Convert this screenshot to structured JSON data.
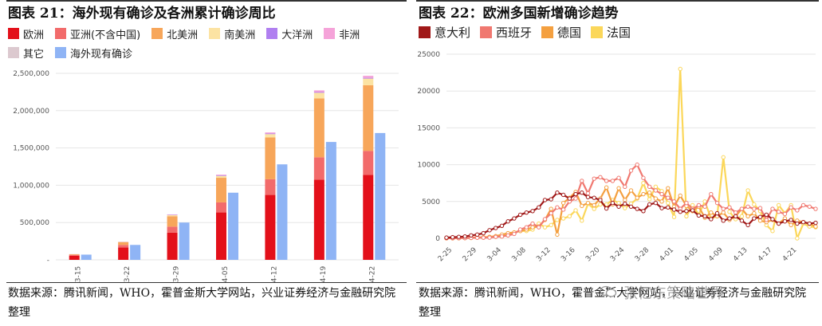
{
  "left": {
    "title": "图表 21：海外现有确诊及各洲累计确诊周比",
    "source": "数据来源：腾讯新闻，WHO，霍普金斯大学网站，兴业证券经济与金融研究院整理",
    "chart_data": {
      "type": "bar",
      "stacked": true,
      "categories": [
        "3-15",
        "3-22",
        "3-29",
        "4-05",
        "4-12",
        "4-19",
        "4-22"
      ],
      "series": [
        {
          "name": "欧洲",
          "color": "#e3101a",
          "values": [
            55000,
            165000,
            365000,
            635000,
            870000,
            1075000,
            1140000
          ]
        },
        {
          "name": "亚洲(不含中国)",
          "color": "#f26b6b",
          "values": [
            12000,
            35000,
            80000,
            135000,
            210000,
            300000,
            320000
          ]
        },
        {
          "name": "北美洲",
          "color": "#f7a65a",
          "values": [
            8000,
            35000,
            140000,
            330000,
            560000,
            790000,
            880000
          ]
        },
        {
          "name": "南美洲",
          "color": "#fce3a3",
          "values": [
            1000,
            5000,
            15000,
            25000,
            45000,
            75000,
            90000
          ]
        },
        {
          "name": "大洋洲",
          "color": "#b07ff0",
          "values": [
            500,
            2000,
            4000,
            7000,
            8000,
            9000,
            10000
          ]
        },
        {
          "name": "非洲",
          "color": "#f5a3d9",
          "values": [
            500,
            2000,
            5000,
            10000,
            15000,
            22000,
            27000
          ]
        },
        {
          "name": "其它",
          "color": "#dcc9cf",
          "values": [
            500,
            700,
            700,
            700,
            700,
            700,
            700
          ]
        }
      ],
      "comparison_series": {
        "name": "海外现有确诊",
        "color": "#8fb4f5",
        "values": [
          70000,
          200000,
          500000,
          900000,
          1280000,
          1580000,
          1700000
        ]
      },
      "ylim": [
        0,
        2500000
      ],
      "yticks": [
        "-",
        "500,000",
        "1,000,000",
        "1,500,000",
        "2,000,000",
        "2,500,000"
      ],
      "ytick_values": [
        0,
        500000,
        1000000,
        1500000,
        2000000,
        2500000
      ],
      "grid": true
    }
  },
  "right": {
    "title": "图表 22：欧洲多国新增确诊趋势",
    "source": "数据来源：腾讯新闻，WHO，霍普金斯大学网站，兴业证券经济与金融研究院整理",
    "watermark": "张忆东策略世界",
    "chart_data": {
      "type": "line",
      "x_ticks": [
        "2-25",
        "2-29",
        "3-04",
        "3-08",
        "3-12",
        "3-16",
        "3-20",
        "3-24",
        "3-28",
        "4-01",
        "4-05",
        "4-09",
        "4-13",
        "4-17",
        "4-21"
      ],
      "ylim": [
        0,
        25000
      ],
      "yticks": [
        "0",
        "5000",
        "10000",
        "15000",
        "20000",
        "25000"
      ],
      "ytick_values": [
        0,
        5000,
        10000,
        15000,
        20000,
        25000
      ],
      "grid": true,
      "series": [
        {
          "name": "意大利",
          "color": "#a01818",
          "values": [
            100,
            150,
            200,
            250,
            400,
            500,
            700,
            1100,
            1400,
            1700,
            2300,
            2700,
            3200,
            3500,
            3700,
            4200,
            5200,
            5300,
            6200,
            5900,
            5400,
            6000,
            6200,
            5600,
            5500,
            5200,
            4050,
            4800,
            4300,
            4700,
            4300,
            4000,
            3700,
            4600,
            4800,
            4100,
            4200,
            3900,
            3600,
            3700,
            3800,
            3100,
            3000,
            2600,
            3400,
            2400,
            2700,
            3000,
            2400,
            1800,
            2700,
            2900,
            3200,
            2600,
            2000,
            2300,
            2500,
            2000,
            2200,
            2000,
            2100
          ]
        },
        {
          "name": "西班牙",
          "color": "#f07870",
          "values": [
            20,
            20,
            30,
            30,
            60,
            80,
            90,
            100,
            200,
            250,
            400,
            600,
            1200,
            1500,
            2000,
            1500,
            2600,
            3400,
            4200,
            3900,
            5000,
            5400,
            7800,
            6100,
            8100,
            8300,
            7800,
            7800,
            8200,
            7000,
            9200,
            10000,
            8200,
            7000,
            6500,
            6000,
            5500,
            5000,
            4000,
            4800,
            4000,
            4500,
            4300,
            6000,
            4800,
            4000,
            4200,
            3500,
            4000,
            4300,
            4000,
            4100,
            2500,
            4000,
            3600,
            3300,
            4200,
            3800,
            4500,
            4300,
            4000
          ]
        },
        {
          "name": "德国",
          "color": "#f4a040",
          "values": [
            10,
            10,
            20,
            50,
            100,
            150,
            100,
            200,
            300,
            500,
            700,
            800,
            1000,
            1200,
            1500,
            1600,
            2500,
            4000,
            500,
            4800,
            5500,
            6300,
            4400,
            4800,
            4500,
            5400,
            6900,
            4600,
            6800,
            5200,
            6500,
            5500,
            6000,
            6200,
            5400,
            5000,
            6800,
            4300,
            5800,
            4400,
            3700,
            4300,
            2800,
            3500,
            3000,
            3500,
            2500,
            3000,
            4000,
            3000,
            3400,
            2400,
            2200,
            2500,
            2000,
            2700,
            1800,
            2400,
            2200,
            2000,
            1600
          ]
        },
        {
          "name": "法国",
          "color": "#fbd75a",
          "values": [
            10,
            10,
            20,
            30,
            50,
            100,
            150,
            200,
            200,
            300,
            500,
            800,
            1000,
            1000,
            1200,
            2000,
            1500,
            1800,
            2500,
            2700,
            3000,
            3800,
            2400,
            4700,
            4000,
            4600,
            4600,
            5200,
            4800,
            4100,
            4700,
            5400,
            7500,
            5300,
            7000,
            6400,
            4800,
            2900,
            23000,
            3000,
            4500,
            3200,
            5000,
            2700,
            3000,
            11000,
            3600,
            2600,
            3000,
            6500,
            4600,
            3700,
            1800,
            1000,
            4500,
            3400,
            4500,
            0,
            2000,
            1600,
            1500
          ]
        }
      ]
    }
  }
}
